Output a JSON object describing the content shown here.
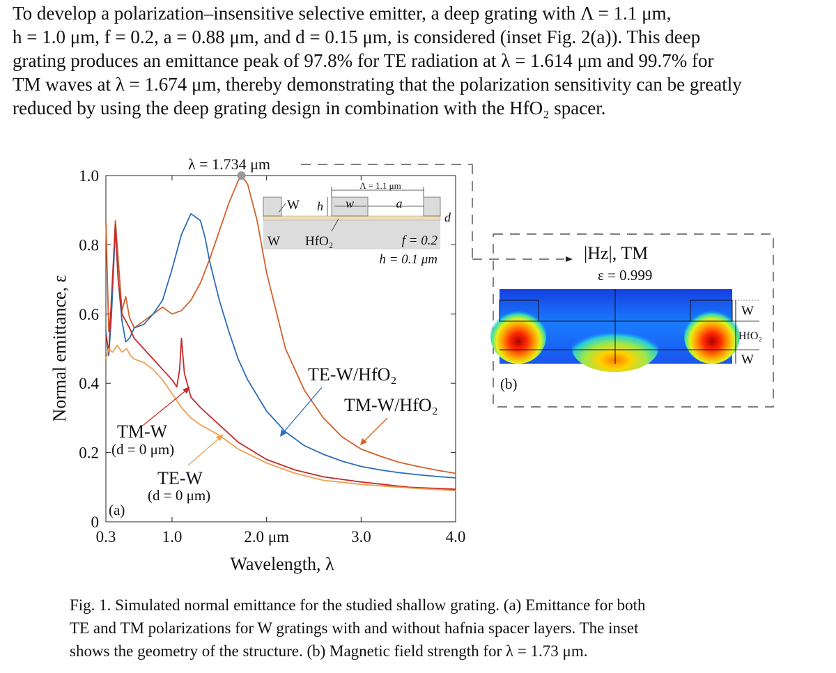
{
  "paragraph": {
    "lines": [
      "To develop a polarization–insensitive selective emitter, a deep grating with Λ = 1.1 μm,",
      "h = 1.0 μm, f = 0.2, a = 0.88 μm, and d = 0.15 μm, is considered (inset Fig. 2(a)). This deep",
      "grating produces an emittance peak of 97.8% for TE radiation at λ = 1.614 μm and 99.7% for",
      "TM waves at λ = 1.674 μm, thereby demonstrating that the polarization sensitivity can be greatly",
      "reduced by using the deep grating design in combination with the HfO₂ spacer."
    ]
  },
  "figure": {
    "peak_annotation": "λ = 1.734 μm",
    "panel_a_label": "(a)",
    "panel_b_label": "(b)",
    "inset": {
      "period_label": "Λ = 1.1 μm",
      "w_label": "w",
      "a_label": "a",
      "h_label": "h",
      "d_label": "d",
      "W_top_label": "W",
      "W_bottom_label": "W",
      "hfo2_label": "HfO₂",
      "f_text": "f = 0.2",
      "h_text": "h = 0.1 μm"
    },
    "field_panel": {
      "title": "|Hz|, TM",
      "epsilon": "ε = 0.999",
      "layer_W_top": "W",
      "layer_hfo2": "HfO₂",
      "layer_W_bottom": "W"
    },
    "curve_labels": {
      "te_hfo2": "TE-W/HfO₂",
      "tm_hfo2": "TM-W/HfO₂",
      "tm_w": "TM-W",
      "tm_w_d": "(d = 0 μm)",
      "te_w": "TE-W",
      "te_w_d": "(d = 0 μm)"
    },
    "colors": {
      "te_hfo2": "#2a6db5",
      "tm_hfo2": "#d2602a",
      "tm_w": "#c72a2a",
      "te_w": "#eda04f",
      "peak_marker": "#9a9a9a"
    }
  },
  "chart_data": {
    "type": "line",
    "title": "",
    "xlabel": "Wavelength, λ",
    "ylabel": "Normal emittance, ε",
    "xlim": [
      0.3,
      4.0
    ],
    "ylim": [
      0,
      1.0
    ],
    "x_ticks": [
      {
        "value": 0.3,
        "label": "0.3"
      },
      {
        "value": 1.0,
        "label": "1.0"
      },
      {
        "value": 2.0,
        "label": "2.0 μm"
      },
      {
        "value": 3.0,
        "label": "3.0"
      },
      {
        "value": 4.0,
        "label": "4.0"
      }
    ],
    "y_ticks": [
      {
        "value": 0,
        "label": "0"
      },
      {
        "value": 0.2,
        "label": "0.2"
      },
      {
        "value": 0.4,
        "label": "0.4"
      },
      {
        "value": 0.6,
        "label": "0.6"
      },
      {
        "value": 0.8,
        "label": "0.8"
      },
      {
        "value": 1.0,
        "label": "1.0"
      }
    ],
    "series": [
      {
        "key": "tm_hfo2",
        "name": "TM-W/HfO₂",
        "x": [
          0.3,
          0.33,
          0.36,
          0.4,
          0.43,
          0.47,
          0.51,
          0.55,
          0.6,
          0.7,
          0.8,
          0.9,
          1.0,
          1.1,
          1.2,
          1.3,
          1.4,
          1.5,
          1.6,
          1.7,
          1.734,
          1.8,
          1.9,
          2.0,
          2.2,
          2.4,
          2.6,
          2.8,
          3.0,
          3.2,
          3.4,
          3.6,
          3.8,
          4.0
        ],
        "y": [
          0.87,
          0.55,
          0.62,
          0.87,
          0.76,
          0.61,
          0.65,
          0.59,
          0.56,
          0.58,
          0.6,
          0.62,
          0.6,
          0.61,
          0.64,
          0.69,
          0.76,
          0.84,
          0.92,
          0.985,
          1.0,
          0.975,
          0.87,
          0.72,
          0.5,
          0.38,
          0.3,
          0.245,
          0.21,
          0.19,
          0.172,
          0.16,
          0.149,
          0.14
        ]
      },
      {
        "key": "te_hfo2",
        "name": "TE-W/HfO₂",
        "x": [
          0.3,
          0.33,
          0.36,
          0.4,
          0.43,
          0.47,
          0.51,
          0.55,
          0.6,
          0.7,
          0.8,
          0.9,
          1.0,
          1.1,
          1.2,
          1.3,
          1.35,
          1.4,
          1.5,
          1.6,
          1.7,
          1.8,
          2.0,
          2.2,
          2.4,
          2.6,
          2.8,
          3.0,
          3.2,
          3.4,
          3.6,
          3.8,
          4.0
        ],
        "y": [
          0.55,
          0.48,
          0.6,
          0.85,
          0.7,
          0.58,
          0.52,
          0.53,
          0.56,
          0.57,
          0.6,
          0.64,
          0.73,
          0.83,
          0.89,
          0.87,
          0.82,
          0.75,
          0.64,
          0.55,
          0.47,
          0.41,
          0.32,
          0.26,
          0.22,
          0.195,
          0.175,
          0.16,
          0.15,
          0.142,
          0.136,
          0.131,
          0.127
        ]
      },
      {
        "key": "tm_w",
        "name": "TM-W",
        "x": [
          0.3,
          0.33,
          0.36,
          0.4,
          0.43,
          0.47,
          0.51,
          0.55,
          0.6,
          0.7,
          0.8,
          0.9,
          1.0,
          1.05,
          1.08,
          1.1,
          1.13,
          1.2,
          1.3,
          1.5,
          1.7,
          2.0,
          2.3,
          2.6,
          3.0,
          3.5,
          4.0
        ],
        "y": [
          0.54,
          0.49,
          0.65,
          0.86,
          0.7,
          0.6,
          0.58,
          0.56,
          0.53,
          0.5,
          0.47,
          0.44,
          0.41,
          0.39,
          0.44,
          0.53,
          0.43,
          0.36,
          0.33,
          0.28,
          0.23,
          0.18,
          0.15,
          0.13,
          0.115,
          0.1,
          0.094
        ]
      },
      {
        "key": "te_w",
        "name": "TE-W",
        "x": [
          0.3,
          0.33,
          0.37,
          0.42,
          0.47,
          0.52,
          0.56,
          0.6,
          0.7,
          0.8,
          0.9,
          1.0,
          1.1,
          1.2,
          1.3,
          1.5,
          1.7,
          2.0,
          2.3,
          2.6,
          3.0,
          3.5,
          4.0
        ],
        "y": [
          0.47,
          0.5,
          0.49,
          0.51,
          0.49,
          0.5,
          0.48,
          0.47,
          0.46,
          0.44,
          0.41,
          0.37,
          0.33,
          0.3,
          0.28,
          0.25,
          0.21,
          0.17,
          0.14,
          0.12,
          0.108,
          0.098,
          0.09
        ]
      }
    ],
    "peak_marker": {
      "x": 1.734,
      "y": 1.0
    }
  },
  "caption": {
    "lines": [
      "Fig. 1. Simulated normal emittance for the studied shallow grating. (a) Emittance for both",
      "TE and TM polarizations for W gratings with and without hafnia spacer layers. The inset",
      "shows the geometry of the structure. (b) Magnetic field strength for λ = 1.73 μm."
    ]
  }
}
